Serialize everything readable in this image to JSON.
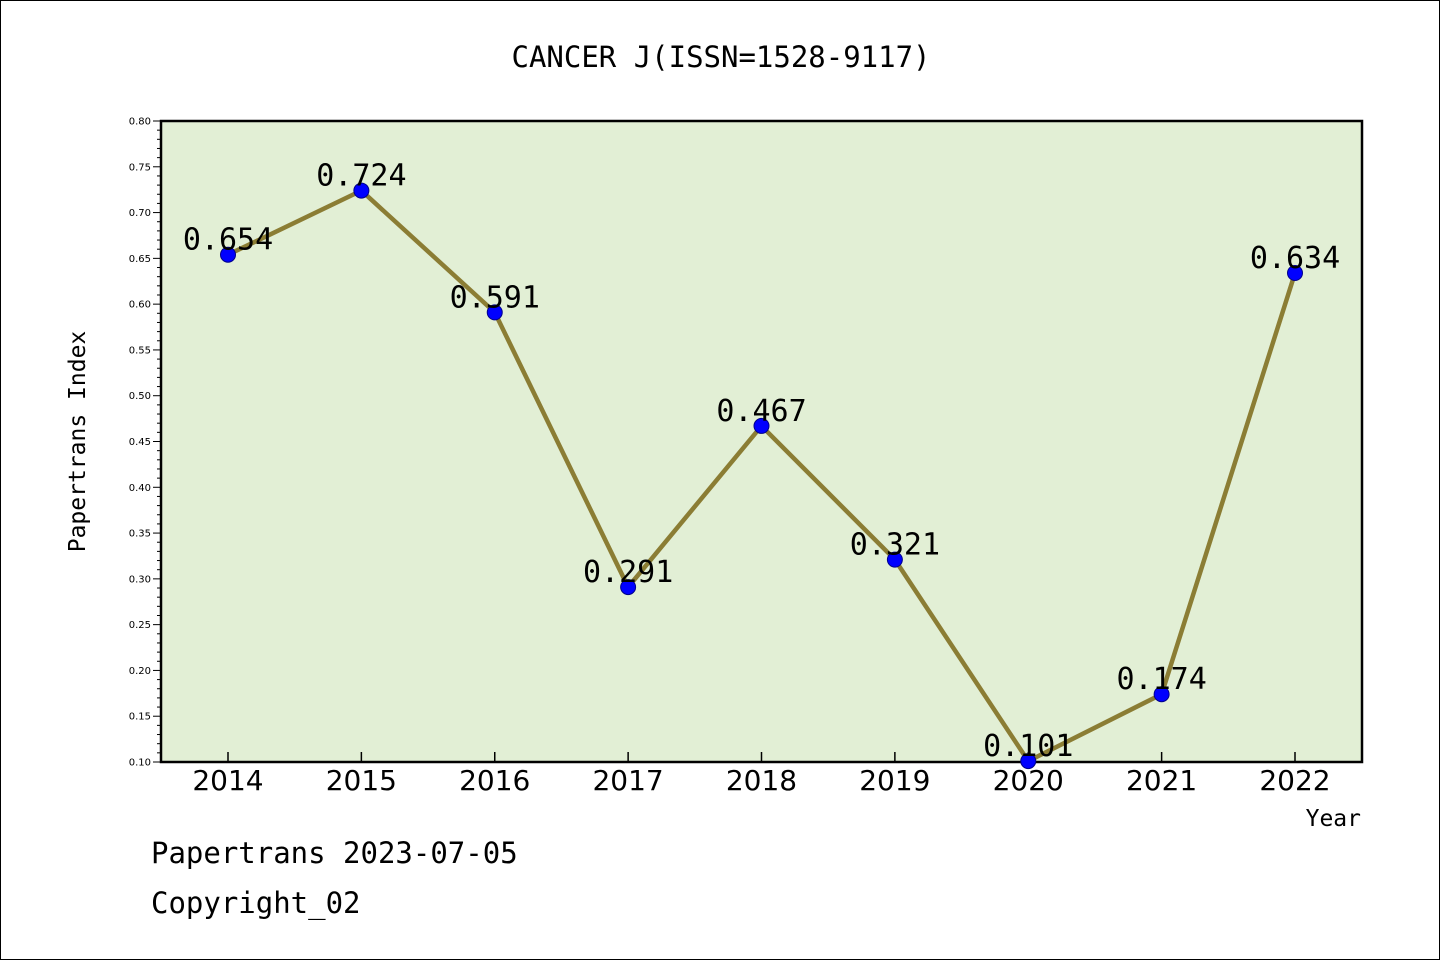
{
  "chart_data": {
    "type": "line",
    "title": "CANCER J(ISSN=1528-9117)",
    "xlabel": "Year",
    "ylabel": "Papertrans Index",
    "categories": [
      "2014",
      "2015",
      "2016",
      "2017",
      "2018",
      "2019",
      "2020",
      "2021",
      "2022"
    ],
    "series": [
      {
        "values": [
          0.654,
          0.724,
          0.591,
          0.291,
          0.467,
          0.321,
          0.101,
          0.174,
          0.634
        ],
        "labels": [
          "0.654",
          "0.724",
          "0.591",
          "0.291",
          "0.467",
          "0.321",
          "0.101",
          "0.174",
          "0.634"
        ]
      }
    ],
    "ylim": [
      0.1,
      0.8
    ],
    "yticks": [
      "0.10",
      "0.15",
      "0.20",
      "0.25",
      "0.30",
      "0.35",
      "0.40",
      "0.45",
      "0.50",
      "0.55",
      "0.60",
      "0.65",
      "0.70",
      "0.75",
      "0.80"
    ],
    "grid": false,
    "colors": {
      "plot_background": "#e2efd5",
      "line": "#8b7d34",
      "marker": "#0000ff"
    }
  },
  "footer": {
    "date_text": "Papertrans 2023-07-05",
    "copyright_text": "Copyright_02"
  }
}
